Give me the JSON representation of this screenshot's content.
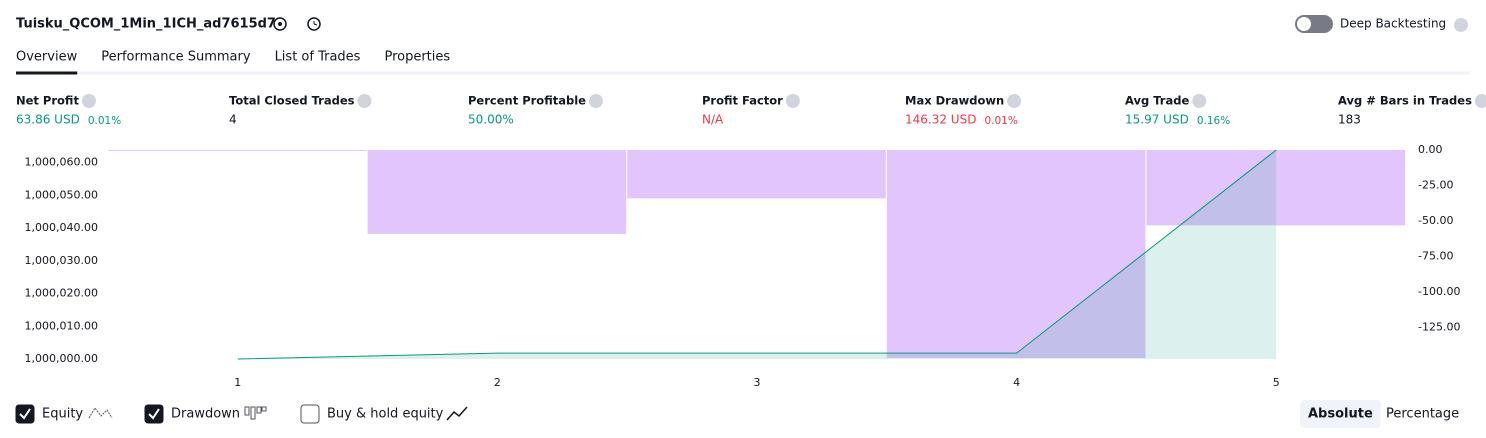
{
  "header": {
    "title": "Tuisku_QCOM_1Min_1ICH_ad7615d7",
    "deep_backtesting": {
      "label": "Deep Backtesting",
      "enabled": false
    }
  },
  "tabs": {
    "items": [
      "Overview",
      "Performance Summary",
      "List of Trades",
      "Properties"
    ],
    "active": 0
  },
  "metrics": [
    {
      "label": "Net Profit",
      "value": "63.86 USD",
      "percent": "0.01%",
      "color": "#089981"
    },
    {
      "label": "Total Closed Trades",
      "value": "4",
      "color": "#131722"
    },
    {
      "label": "Percent Profitable",
      "value": "50.00%",
      "color": "#089981"
    },
    {
      "label": "Profit Factor",
      "value": "N/A",
      "color": "#f23645"
    },
    {
      "label": "Max Drawdown",
      "value": "146.32 USD",
      "percent": "0.01%",
      "color": "#f23645"
    },
    {
      "label": "Avg Trade",
      "value": "15.97 USD",
      "percent": "0.16%",
      "color": "#089981"
    },
    {
      "label": "Avg # Bars in Trades",
      "value": "183",
      "color": "#131722"
    }
  ],
  "chart_data": {
    "type": "equity-drawdown",
    "x": [
      1,
      2,
      3,
      4,
      5
    ],
    "xlim": [
      0.5,
      5.5
    ],
    "xticks": [
      1,
      2,
      3,
      4,
      5
    ],
    "ylim": [
      1000000,
      1000063.86
    ],
    "yticks": [
      {
        "value": 1000000,
        "label": "1,000,000.00"
      },
      {
        "value": 1000010,
        "label": "1,000,010.00"
      },
      {
        "value": 1000020,
        "label": "1,000,020.00"
      },
      {
        "value": 1000030,
        "label": "1,000,030.00"
      },
      {
        "value": 1000040,
        "label": "1,000,040.00"
      },
      {
        "value": 1000050,
        "label": "1,000,050.00"
      },
      {
        "value": 1000060,
        "label": "1,000,060.00"
      }
    ],
    "y2lim": [
      -147,
      0
    ],
    "y2ticks": [
      {
        "value": 0,
        "label": "0.00"
      },
      {
        "value": -25,
        "label": "-25.00"
      },
      {
        "value": -50,
        "label": "-50.00"
      },
      {
        "value": -75,
        "label": "-75.00"
      },
      {
        "value": -100,
        "label": "-100.00"
      },
      {
        "value": -125,
        "label": "-125.00"
      }
    ],
    "series": [
      {
        "name": "Equity",
        "color": "#089981",
        "checked": true,
        "values": [
          1000000,
          1000001.8,
          1000001.8,
          1000001.8,
          1000063.86
        ]
      },
      {
        "name": "Drawdown",
        "color": "#e1c5fc",
        "checked": true,
        "axis": "y2",
        "values": [
          0,
          -59,
          -34,
          -146.32,
          -53
        ]
      }
    ],
    "buy_hold": {
      "label": "Buy & hold equity",
      "checked": false
    }
  },
  "scale_modes": {
    "items": [
      "Absolute",
      "Percentage"
    ],
    "active": 0
  }
}
